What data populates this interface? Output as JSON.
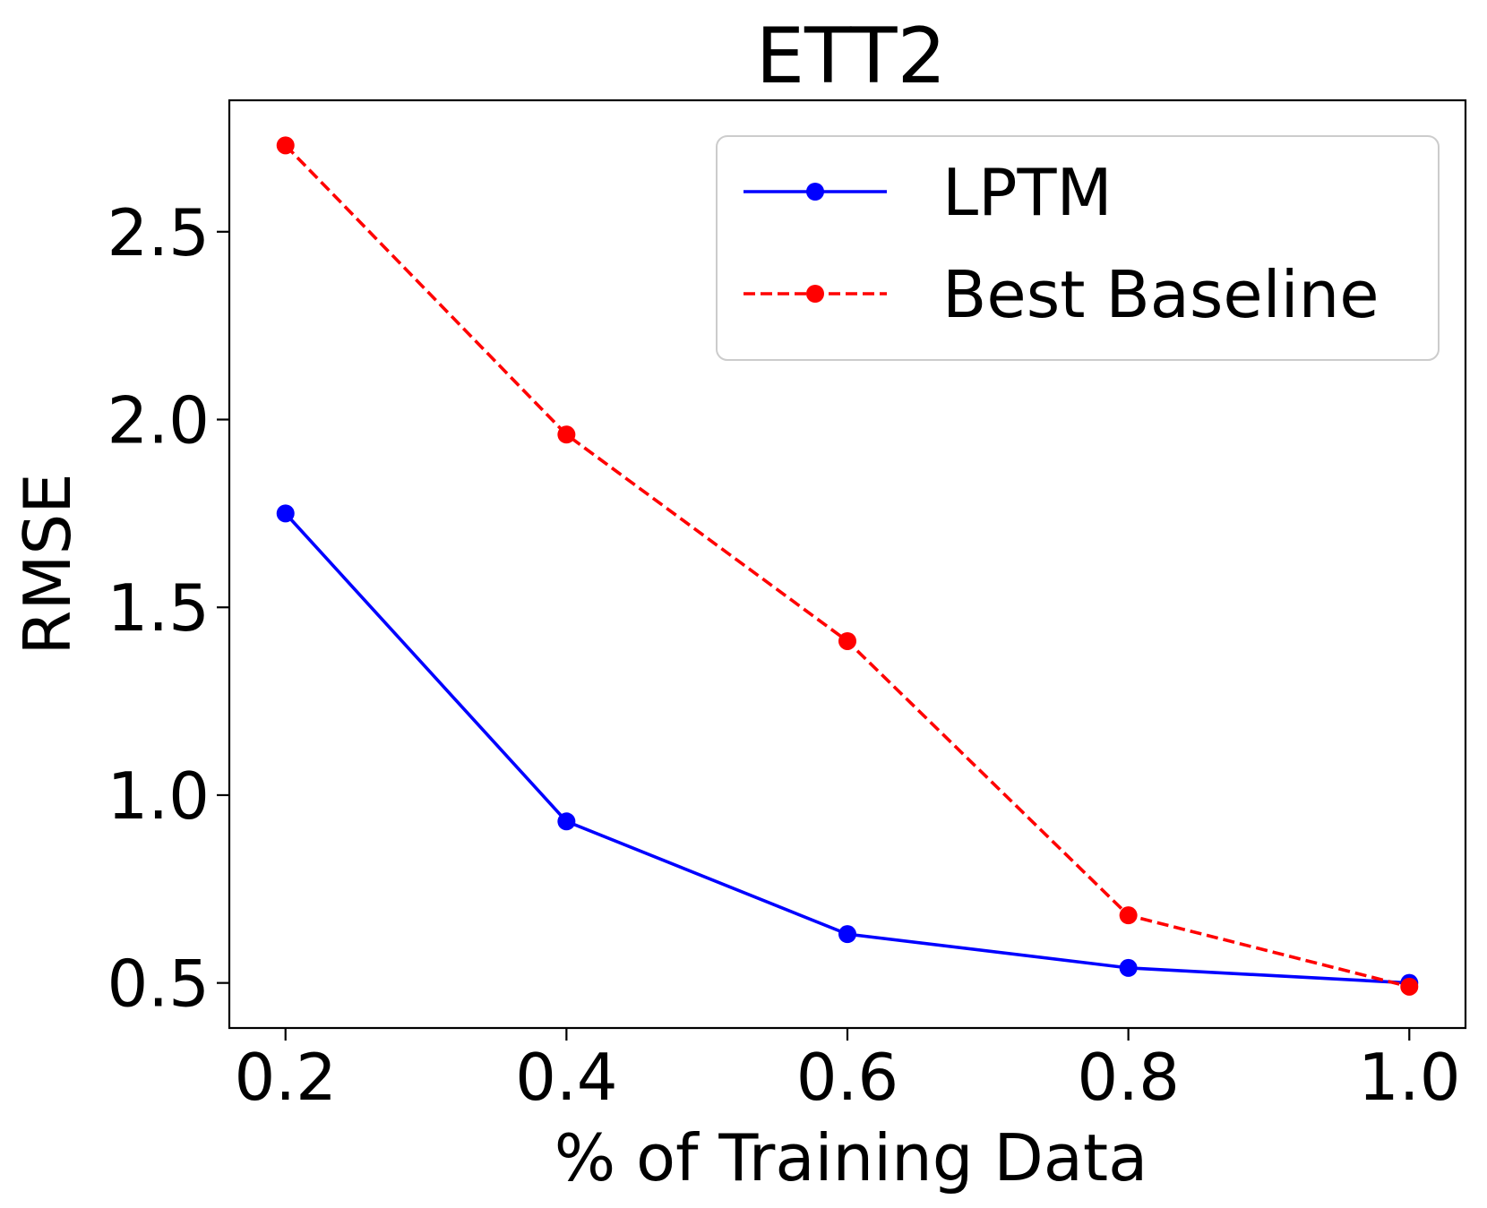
{
  "chart_data": {
    "type": "line",
    "title": "ETT2",
    "xlabel": "% of Training Data",
    "ylabel": "RMSE",
    "x": [
      0.2,
      0.4,
      0.6,
      0.8,
      1.0
    ],
    "xticks": [
      "0.2",
      "0.4",
      "0.6",
      "0.8",
      "1.0"
    ],
    "yticks": [
      "0.5",
      "1.0",
      "1.5",
      "2.0",
      "2.5"
    ],
    "xlim": [
      0.16,
      1.04
    ],
    "ylim": [
      0.38,
      2.85
    ],
    "grid": false,
    "legend_position": "top-right",
    "series": [
      {
        "name": "LPTM",
        "values": [
          1.75,
          0.93,
          0.63,
          0.54,
          0.5
        ],
        "color": "#0000ff",
        "style": "solid",
        "marker": "circle"
      },
      {
        "name": "Best Baseline",
        "values": [
          2.73,
          1.96,
          1.41,
          0.68,
          0.49
        ],
        "color": "#ff0000",
        "style": "dashed",
        "marker": "circle"
      }
    ]
  }
}
